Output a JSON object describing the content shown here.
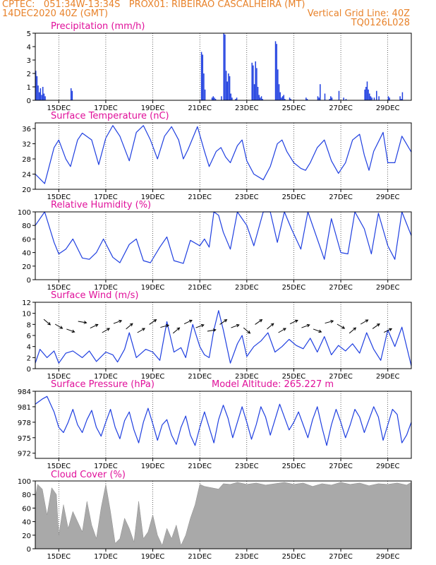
{
  "header": {
    "line1_left": "CPTEC:   051:34W-13:34S   PROX01: RIBEIRAO CASCALHEIRA (MT)",
    "line2_left": "14DEC2020 40Z (GMT)",
    "line2_right": "Vertical Grid Line: 40Z",
    "line3_right": "TQ0126L028"
  },
  "colors": {
    "header": "#e8822a",
    "title": "#e0109a",
    "series": "#1f3fe0",
    "cloud": "#a9a9a9"
  },
  "x_ticks": [
    "15DEC",
    "17DEC",
    "19DEC",
    "21DEC",
    "23DEC",
    "25DEC",
    "27DEC",
    "29DEC"
  ],
  "model_altitude": "Model Altitude: 265.227 m",
  "chart_data": [
    {
      "id": "precip",
      "type": "bar",
      "title": "Precipitation (mm/h)",
      "xlim": [
        0,
        16
      ],
      "ylim": [
        0,
        5
      ],
      "yticks": [
        "0",
        "1",
        "2",
        "3",
        "4",
        "5"
      ],
      "x": [
        0.0,
        0.05,
        0.1,
        0.15,
        0.2,
        0.25,
        0.3,
        0.35,
        0.4,
        1.5,
        1.55,
        7.05,
        7.1,
        7.15,
        7.2,
        7.5,
        7.55,
        7.6,
        7.65,
        7.9,
        8.0,
        8.05,
        8.1,
        8.15,
        8.2,
        8.25,
        8.3,
        8.35,
        8.5,
        8.55,
        9.2,
        9.25,
        9.3,
        9.35,
        9.4,
        9.45,
        9.5,
        9.55,
        9.6,
        9.65,
        10.2,
        10.25,
        10.3,
        10.35,
        10.4,
        10.45,
        10.5,
        10.55,
        10.6,
        10.8,
        10.85,
        11.5,
        11.55,
        12.0,
        12.05,
        12.1,
        12.3,
        12.5,
        12.55,
        12.6,
        12.9,
        13.1,
        13.2,
        14.0,
        14.05,
        14.1,
        14.15,
        14.2,
        14.25,
        14.3,
        14.4,
        14.5,
        14.6,
        15.0,
        15.05,
        15.5,
        15.55,
        15.6
      ],
      "values": [
        2.2,
        1.8,
        1.1,
        0.6,
        0.9,
        0.4,
        1.0,
        0.5,
        0.3,
        0.9,
        0.7,
        3.6,
        3.4,
        2.0,
        0.8,
        0.2,
        0.3,
        0.2,
        0.1,
        0.3,
        5.0,
        4.9,
        2.2,
        1.4,
        2.0,
        1.8,
        0.5,
        0.2,
        0.1,
        0.2,
        2.8,
        2.6,
        1.2,
        2.9,
        2.4,
        1.0,
        0.4,
        0.2,
        0.3,
        0.1,
        4.4,
        4.2,
        2.3,
        1.2,
        0.6,
        0.2,
        0.3,
        0.4,
        0.1,
        0.2,
        0.1,
        0.2,
        0.1,
        0.3,
        0.2,
        1.2,
        0.5,
        0.1,
        0.3,
        0.2,
        0.7,
        0.2,
        0.1,
        0.8,
        1.0,
        1.4,
        0.8,
        0.5,
        0.3,
        0.2,
        0.2,
        0.7,
        0.3,
        0.3,
        0.2,
        0.3,
        0.1,
        0.6
      ]
    },
    {
      "id": "temp",
      "type": "line",
      "title": "Surface Temperature (nC)",
      "xlim": [
        0,
        16
      ],
      "ylim": [
        20,
        37.5
      ],
      "yticks": [
        "20",
        "24",
        "28",
        "32",
        "36"
      ],
      "x": [
        0,
        0.4,
        0.8,
        1.0,
        1.3,
        1.5,
        1.8,
        2.0,
        2.4,
        2.7,
        3.0,
        3.3,
        3.6,
        4.0,
        4.3,
        4.6,
        4.9,
        5.2,
        5.5,
        5.8,
        6.1,
        6.3,
        6.5,
        6.9,
        7.2,
        7.4,
        7.7,
        7.9,
        8.1,
        8.3,
        8.6,
        8.8,
        9.0,
        9.3,
        9.7,
        10.0,
        10.3,
        10.5,
        10.7,
        11.0,
        11.3,
        11.5,
        11.7,
        12.0,
        12.3,
        12.6,
        12.9,
        13.2,
        13.5,
        13.8,
        14.0,
        14.2,
        14.4,
        14.8,
        15.0,
        15.3,
        15.6,
        16.0
      ],
      "values": [
        24,
        21.5,
        31,
        33,
        28,
        26,
        33,
        34.8,
        33,
        26.5,
        33.5,
        36.8,
        34,
        27.5,
        35,
        36.8,
        33,
        28,
        34,
        36.5,
        33,
        28,
        30.5,
        36.5,
        30,
        26,
        30,
        31,
        28.5,
        27,
        31.5,
        33,
        27.5,
        24,
        22.5,
        26,
        32,
        33,
        30,
        27,
        25.5,
        25,
        27,
        31,
        33,
        27.5,
        24.2,
        27,
        33,
        34.5,
        29,
        25,
        30,
        35,
        27,
        27,
        34,
        29.8
      ]
    },
    {
      "id": "rh",
      "type": "line",
      "title": "Relative Humidity (%)",
      "xlim": [
        0,
        16
      ],
      "ylim": [
        0,
        100
      ],
      "yticks": [
        "0",
        "20",
        "40",
        "60",
        "80",
        "100"
      ],
      "x": [
        0,
        0.4,
        0.8,
        1.0,
        1.3,
        1.6,
        2.0,
        2.3,
        2.6,
        2.9,
        3.3,
        3.6,
        4.0,
        4.3,
        4.6,
        4.9,
        5.3,
        5.6,
        5.9,
        6.3,
        6.6,
        7.0,
        7.2,
        7.4,
        7.6,
        7.8,
        8.0,
        8.3,
        8.6,
        9.0,
        9.3,
        9.7,
        10.0,
        10.3,
        10.6,
        10.9,
        11.3,
        11.6,
        12.0,
        12.3,
        12.6,
        13.0,
        13.3,
        13.6,
        14.0,
        14.3,
        14.6,
        15.0,
        15.3,
        15.6,
        16.0
      ],
      "values": [
        80,
        100,
        55,
        38,
        45,
        60,
        32,
        30,
        40,
        60,
        33,
        25,
        52,
        60,
        28,
        25,
        48,
        63,
        28,
        24,
        58,
        50,
        60,
        48,
        100,
        95,
        70,
        45,
        100,
        80,
        50,
        100,
        100,
        55,
        100,
        75,
        45,
        100,
        60,
        30,
        90,
        40,
        38,
        100,
        75,
        38,
        98,
        50,
        30,
        100,
        65
      ]
    },
    {
      "id": "wind",
      "type": "line",
      "title": "Surface Wind (m/s)",
      "xlim": [
        0,
        16
      ],
      "ylim": [
        0,
        12
      ],
      "yticks": [
        "0",
        "2",
        "4",
        "6",
        "8",
        "10",
        "12"
      ],
      "x": [
        0,
        0.2,
        0.5,
        0.8,
        1.0,
        1.3,
        1.6,
        2.0,
        2.3,
        2.6,
        3.0,
        3.3,
        3.5,
        3.8,
        4.0,
        4.3,
        4.7,
        5.0,
        5.3,
        5.6,
        5.9,
        6.2,
        6.4,
        6.7,
        7.0,
        7.2,
        7.4,
        7.6,
        7.8,
        8.0,
        8.3,
        8.6,
        8.8,
        9.0,
        9.3,
        9.6,
        9.9,
        10.2,
        10.5,
        10.8,
        11.1,
        11.4,
        11.7,
        12.0,
        12.3,
        12.6,
        12.9,
        13.2,
        13.5,
        13.8,
        14.1,
        14.4,
        14.7,
        15.0,
        15.3,
        15.6,
        16.0
      ],
      "values": [
        1,
        3.5,
        2,
        3.2,
        1,
        2.8,
        3.2,
        2,
        3.2,
        1.3,
        3,
        2.5,
        1.2,
        3.5,
        6.5,
        2,
        3.5,
        3,
        1.5,
        8.5,
        3,
        3.8,
        2,
        8,
        4,
        2.5,
        2,
        7,
        10.5,
        7,
        1,
        4.5,
        6,
        2.2,
        4,
        5,
        6.5,
        3,
        4,
        5.3,
        4.2,
        3.6,
        5.5,
        3,
        5.8,
        2.5,
        4.2,
        3.2,
        4.5,
        2.8,
        6.5,
        3.5,
        1.5,
        7,
        4,
        7.5,
        0.5
      ]
    },
    {
      "id": "pres",
      "type": "line",
      "title": "Surface Pressure (hPa)",
      "xlim": [
        0,
        16
      ],
      "ylim": [
        971,
        984
      ],
      "yticks": [
        "972",
        "975",
        "978",
        "981",
        "984"
      ],
      "x": [
        0,
        0.3,
        0.5,
        0.8,
        1.0,
        1.2,
        1.4,
        1.6,
        1.8,
        2.0,
        2.2,
        2.4,
        2.6,
        2.8,
        3.0,
        3.2,
        3.4,
        3.6,
        3.8,
        4.0,
        4.2,
        4.4,
        4.6,
        4.8,
        5.0,
        5.2,
        5.4,
        5.6,
        5.8,
        6.0,
        6.2,
        6.4,
        6.6,
        6.8,
        7.0,
        7.2,
        7.4,
        7.6,
        7.8,
        8.0,
        8.2,
        8.4,
        8.6,
        8.8,
        9.0,
        9.2,
        9.4,
        9.6,
        9.8,
        10.0,
        10.2,
        10.4,
        10.6,
        10.8,
        11.0,
        11.2,
        11.4,
        11.6,
        11.8,
        12.0,
        12.2,
        12.4,
        12.6,
        12.8,
        13.0,
        13.2,
        13.4,
        13.6,
        13.8,
        14.0,
        14.2,
        14.4,
        14.6,
        14.8,
        15.0,
        15.2,
        15.4,
        15.6,
        15.8,
        16.0
      ],
      "values": [
        981.5,
        982.5,
        983,
        980,
        977,
        976,
        978,
        980.5,
        977.5,
        976,
        978.5,
        980.3,
        977,
        975.3,
        978,
        980.5,
        977,
        974.8,
        978.3,
        980,
        976.5,
        974,
        978,
        980.7,
        977.7,
        974.5,
        977.5,
        978.5,
        975.5,
        973.7,
        977,
        979.2,
        975.5,
        973.5,
        977,
        980,
        977,
        974,
        978.5,
        981.3,
        978.8,
        975,
        978,
        981,
        978,
        974.7,
        977.5,
        981,
        979,
        975.5,
        978.5,
        981.5,
        979,
        976.5,
        978,
        980,
        977.5,
        975,
        978.5,
        981,
        977,
        973.5,
        977.5,
        980.5,
        978,
        975,
        977.5,
        980.5,
        979,
        976,
        978.5,
        981,
        979,
        974.5,
        977.5,
        980.5,
        979.5,
        974,
        975.5,
        978
      ]
    },
    {
      "id": "cloud",
      "type": "area",
      "title": "Cloud Cover (%)",
      "xlim": [
        0,
        16
      ],
      "ylim": [
        0,
        100
      ],
      "yticks": [
        "0",
        "20",
        "40",
        "60",
        "80",
        "100"
      ],
      "x": [
        0,
        0.1,
        0.3,
        0.5,
        0.7,
        0.9,
        1.0,
        1.2,
        1.4,
        1.6,
        1.8,
        2.0,
        2.2,
        2.4,
        2.6,
        2.8,
        3.0,
        3.2,
        3.4,
        3.6,
        3.8,
        4.0,
        4.2,
        4.4,
        4.6,
        4.8,
        5.0,
        5.2,
        5.4,
        5.6,
        5.8,
        6.0,
        6.2,
        6.4,
        6.6,
        6.8,
        7.0,
        7.2,
        7.5,
        7.8,
        8.0,
        8.3,
        8.6,
        9.0,
        9.4,
        9.8,
        10.2,
        10.6,
        11.0,
        11.4,
        11.8,
        12.2,
        12.6,
        13.0,
        13.4,
        13.8,
        14.2,
        14.6,
        15.0,
        15.4,
        15.8,
        16.0
      ],
      "values": [
        75,
        95,
        88,
        50,
        90,
        80,
        20,
        65,
        30,
        55,
        40,
        25,
        70,
        35,
        15,
        60,
        95,
        55,
        8,
        15,
        45,
        30,
        10,
        70,
        15,
        25,
        50,
        20,
        5,
        30,
        15,
        35,
        5,
        20,
        45,
        65,
        95,
        92,
        90,
        88,
        96,
        95,
        98,
        95,
        97,
        94,
        96,
        98,
        95,
        97,
        92,
        96,
        94,
        98,
        95,
        97,
        93,
        96,
        95,
        97,
        94,
        98
      ]
    }
  ],
  "wind_arrows_deg": [
    -40,
    -30,
    -20,
    -10,
    25,
    30,
    20,
    40,
    30,
    35,
    15,
    40,
    25,
    20,
    10,
    35,
    20,
    -40,
    35,
    40,
    30,
    25,
    20,
    -20,
    15,
    -30,
    40,
    30,
    35,
    25
  ]
}
